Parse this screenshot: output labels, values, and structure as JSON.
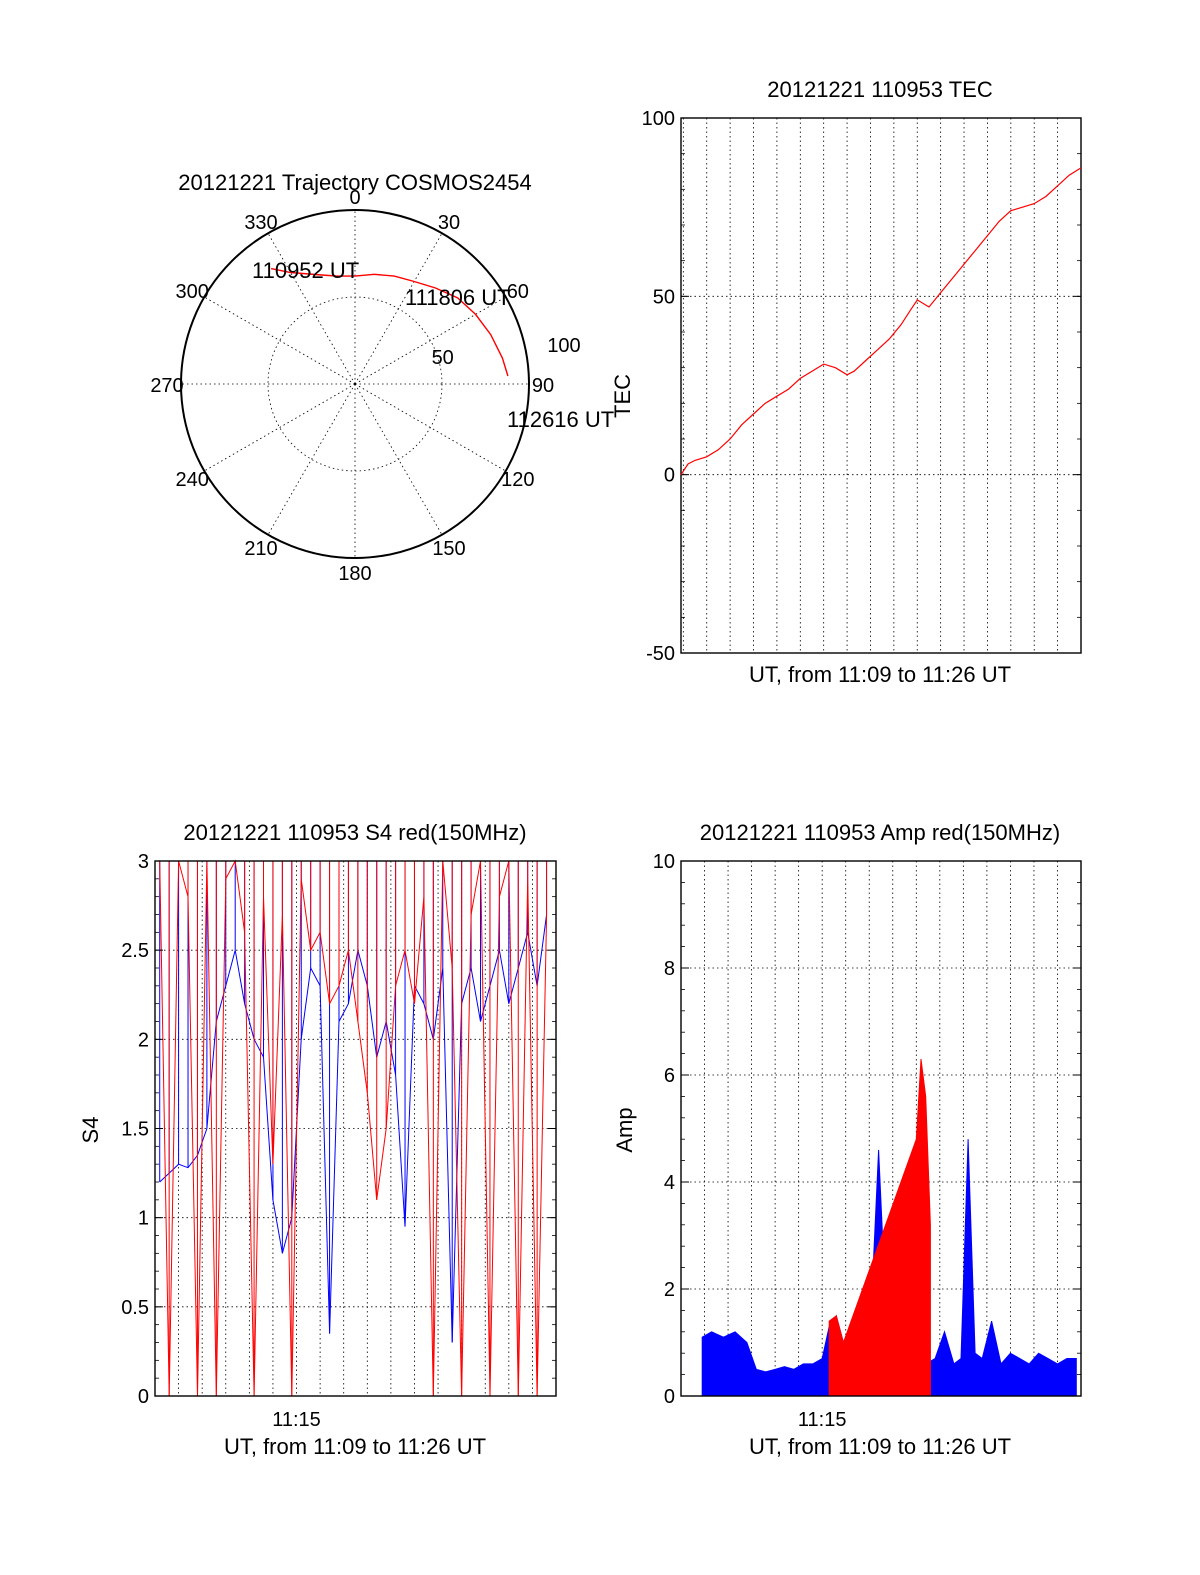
{
  "chart_data": [
    {
      "type": "scatter",
      "title": "20121221 Trajectory COSMOS2454",
      "polar": true,
      "azimuth_labels": [
        "0",
        "30",
        "60",
        "90",
        "120",
        "150",
        "180",
        "210",
        "240",
        "270",
        "300",
        "330"
      ],
      "ring_labels": [
        "50",
        "100"
      ],
      "zenith_angle_range": [
        0,
        100
      ],
      "rings": [
        50,
        100
      ],
      "annotations": [
        "110952 UT",
        "111806 UT",
        "112616 UT"
      ],
      "series": [
        {
          "color": "#ff0000",
          "points": [
            [
              324,
              82
            ],
            [
              330,
              74
            ],
            [
              340,
              67
            ],
            [
              350,
              63
            ],
            [
              0,
              62
            ],
            [
              10,
              64
            ],
            [
              20,
              66
            ],
            [
              30,
              68
            ],
            [
              40,
              72
            ],
            [
              50,
              77
            ],
            [
              60,
              80
            ],
            [
              70,
              83
            ],
            [
              80,
              86
            ],
            [
              87,
              88
            ]
          ]
        }
      ],
      "grid": true
    },
    {
      "type": "line",
      "title": "20121221 110953 TEC",
      "xlabel": "UT, from 11:09 to 11:26 UT",
      "ylabel": "TEC",
      "xlim": [
        669.9,
        687
      ],
      "ylim": [
        -50,
        100
      ],
      "yticks": [
        "100",
        "50",
        "0",
        "-50"
      ],
      "xtick_labels": [],
      "grid": true,
      "series": [
        {
          "color": "#ff0000",
          "x": [
            669.9,
            670.2,
            670.5,
            671,
            671.5,
            672,
            672.5,
            673,
            673.5,
            674,
            674.5,
            675,
            675.5,
            676,
            676.5,
            677,
            677.3,
            677.8,
            678.3,
            678.8,
            679.3,
            679.7,
            680,
            680.5,
            681,
            681.5,
            682,
            682.5,
            683,
            683.5,
            684,
            684.5,
            685,
            685.5,
            686,
            686.5,
            687
          ],
          "y": [
            0,
            3,
            4,
            5,
            7,
            10,
            14,
            17,
            20,
            22,
            24,
            27,
            29,
            31,
            30,
            28,
            29,
            32,
            35,
            38,
            42,
            46,
            49,
            47,
            51,
            55,
            59,
            63,
            67,
            71,
            74,
            75,
            76,
            78,
            81,
            84,
            86
          ]
        }
      ]
    },
    {
      "type": "line",
      "title": "20121221 110953 S4 red(150MHz)",
      "xlabel": "UT, from 11:09 to 11:26 UT",
      "ylabel": "S4",
      "xlim": [
        669,
        686
      ],
      "ylim": [
        0,
        3
      ],
      "yticks": [
        "3",
        "2.5",
        "2",
        "1.5",
        "1",
        "0.5",
        "0"
      ],
      "xtick_labels": [
        "11:15"
      ],
      "grid": true,
      "series": [
        {
          "color": "#0000ff",
          "x": [
            669.2,
            669.6,
            670,
            670.4,
            670.8,
            671.2,
            671.6,
            672,
            672.4,
            672.8,
            673.2,
            673.6,
            674,
            674.4,
            674.8,
            675.2,
            675.6,
            676,
            676.4,
            676.8,
            677.2,
            677.6,
            678,
            678.4,
            678.8,
            679.2,
            679.6,
            680,
            680.4,
            680.8,
            681.2,
            681.6,
            682,
            682.4,
            682.8,
            683.2,
            683.6,
            684,
            684.4,
            684.8,
            685.2,
            685.6
          ],
          "y": [
            1.2,
            1.25,
            1.3,
            1.28,
            1.35,
            1.5,
            2.1,
            2.3,
            2.5,
            2.2,
            2.0,
            1.9,
            1.1,
            0.8,
            1.0,
            2.0,
            2.4,
            2.3,
            0.35,
            2.1,
            2.2,
            2.5,
            2.3,
            1.9,
            2.1,
            1.8,
            0.95,
            2.3,
            2.2,
            2.0,
            2.4,
            0.3,
            2.2,
            2.4,
            2.1,
            2.3,
            2.5,
            2.2,
            2.4,
            2.6,
            2.3,
            2.7
          ]
        },
        {
          "color": "#ff0000",
          "x": [
            669.2,
            669.6,
            670,
            670.4,
            670.8,
            671.2,
            671.6,
            672,
            672.4,
            672.8,
            673.2,
            673.6,
            674,
            674.4,
            674.8,
            675.2,
            675.6,
            676,
            676.4,
            676.8,
            677.2,
            677.6,
            678,
            678.4,
            678.8,
            679.2,
            679.6,
            680,
            680.4,
            680.8,
            681.2,
            681.6,
            682,
            682.4,
            682.8,
            683.2,
            683.6,
            684,
            684.4,
            684.8,
            685.2,
            685.6
          ],
          "y": [
            3,
            0,
            3,
            2.8,
            0,
            3,
            0,
            2.9,
            3,
            2.6,
            0,
            2.8,
            1.3,
            2.7,
            0,
            2.9,
            2.5,
            2.6,
            2.2,
            2.3,
            2.5,
            2.1,
            1.7,
            1.1,
            1.5,
            2.3,
            2.5,
            2.2,
            2.8,
            0,
            3,
            2.4,
            0,
            2.7,
            3,
            0,
            2.8,
            3,
            0,
            2.9,
            0,
            2.7
          ]
        }
      ]
    },
    {
      "type": "area",
      "title": "20121221 110953 Amp red(150MHz)",
      "xlabel": "UT, from 11:09 to 11:26 UT",
      "ylabel": "Amp",
      "xlim": [
        669,
        686
      ],
      "ylim": [
        0,
        10
      ],
      "yticks": [
        "10",
        "8",
        "6",
        "4",
        "2",
        "0"
      ],
      "xtick_labels": [
        "11:15"
      ],
      "grid": true,
      "series": [
        {
          "color": "#0000ff",
          "x": [
            669.9,
            670.3,
            670.8,
            671.3,
            671.8,
            672.2,
            672.6,
            673,
            673.4,
            673.8,
            674.2,
            674.6,
            675,
            675.3,
            675.6,
            675.9,
            676.2,
            676.6,
            677,
            677.4,
            677.8,
            678.2,
            678.6,
            679,
            679.4,
            679.8,
            680.2,
            680.6,
            680.9,
            681.2,
            681.5,
            681.8,
            682.2,
            682.6,
            683,
            683.4,
            683.8,
            684.2,
            684.6,
            685,
            685.4,
            685.8
          ],
          "y": [
            1.1,
            1.2,
            1.1,
            1.2,
            1.0,
            0.5,
            0.45,
            0.5,
            0.55,
            0.5,
            0.6,
            0.6,
            0.7,
            1.3,
            1.5,
            1.0,
            0.6,
            1.2,
            0.8,
            4.6,
            0.7,
            0.6,
            0.65,
            0.8,
            0.6,
            0.7,
            1.2,
            0.6,
            0.7,
            4.8,
            0.8,
            0.7,
            1.4,
            0.6,
            0.8,
            0.7,
            0.6,
            0.8,
            0.7,
            0.6,
            0.7,
            0.7
          ]
        },
        {
          "color": "#ff0000",
          "x": [
            675.3,
            675.6,
            675.9,
            679.0,
            679.2,
            679.4,
            679.6
          ],
          "y": [
            1.4,
            1.5,
            1.0,
            4.8,
            6.3,
            5.6,
            3.2
          ]
        }
      ]
    }
  ]
}
